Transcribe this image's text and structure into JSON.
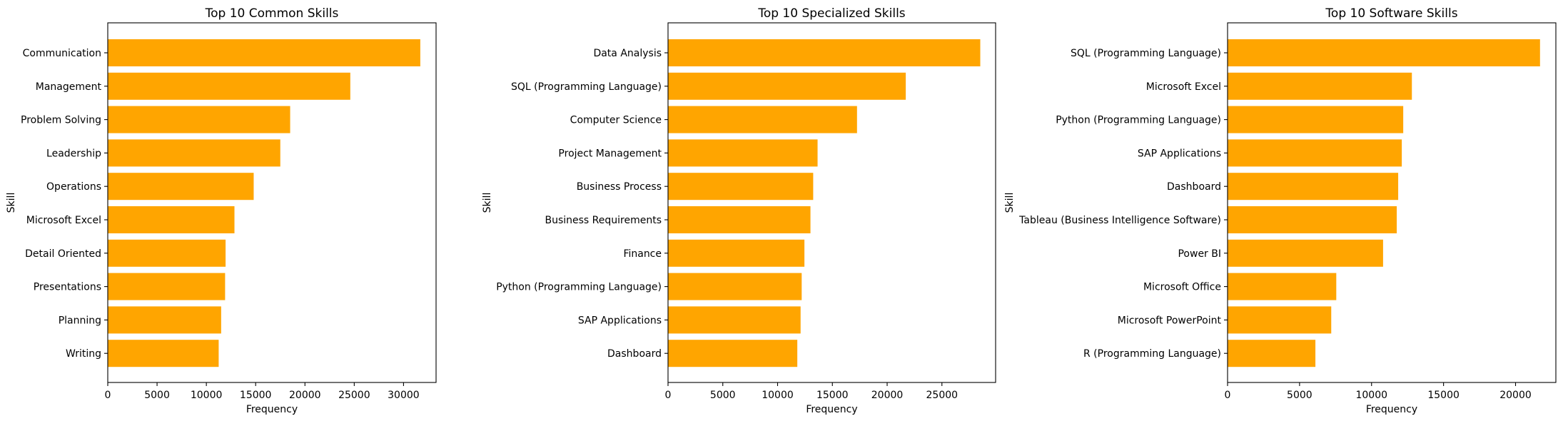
{
  "chart_data": [
    {
      "type": "bar",
      "orientation": "horizontal",
      "title": "Top 10 Common Skills",
      "xlabel": "Frequency",
      "ylabel": "Skill",
      "categories": [
        "Communication",
        "Management",
        "Problem Solving",
        "Leadership",
        "Operations",
        "Microsoft Excel",
        "Detail Oriented",
        "Presentations",
        "Planning",
        "Writing"
      ],
      "values": [
        31700,
        24600,
        18500,
        17500,
        14800,
        12850,
        11950,
        11900,
        11500,
        11250
      ],
      "xlim": [
        0,
        33300
      ],
      "xticks": [
        0,
        5000,
        10000,
        15000,
        20000,
        25000,
        30000
      ],
      "color": "#ffa500",
      "grid": false
    },
    {
      "type": "bar",
      "orientation": "horizontal",
      "title": "Top 10 Specialized Skills",
      "xlabel": "Frequency",
      "ylabel": "Skill",
      "categories": [
        "Data Analysis",
        "SQL (Programming Language)",
        "Computer Science",
        "Project Management",
        "Business Process",
        "Business Requirements",
        "Finance",
        "Python (Programming Language)",
        "SAP Applications",
        "Dashboard"
      ],
      "values": [
        28500,
        21700,
        17250,
        13650,
        13250,
        13000,
        12450,
        12200,
        12100,
        11800
      ],
      "xlim": [
        0,
        29900
      ],
      "xticks": [
        0,
        5000,
        10000,
        15000,
        20000,
        25000
      ],
      "color": "#ffa500",
      "grid": false
    },
    {
      "type": "bar",
      "orientation": "horizontal",
      "title": "Top 10 Software Skills",
      "xlabel": "Frequency",
      "ylabel": "Skill",
      "categories": [
        "SQL (Programming Language)",
        "Microsoft Excel",
        "Python (Programming Language)",
        "SAP Applications",
        "Dashboard",
        "Tableau (Business Intelligence Software)",
        "Power BI",
        "Microsoft Office",
        "Microsoft PowerPoint",
        "R (Programming Language)"
      ],
      "values": [
        21700,
        12800,
        12200,
        12100,
        11850,
        11750,
        10800,
        7550,
        7200,
        6100
      ],
      "xlim": [
        0,
        22800
      ],
      "xticks": [
        0,
        5000,
        10000,
        15000,
        20000
      ],
      "color": "#ffa500",
      "grid": false
    }
  ]
}
